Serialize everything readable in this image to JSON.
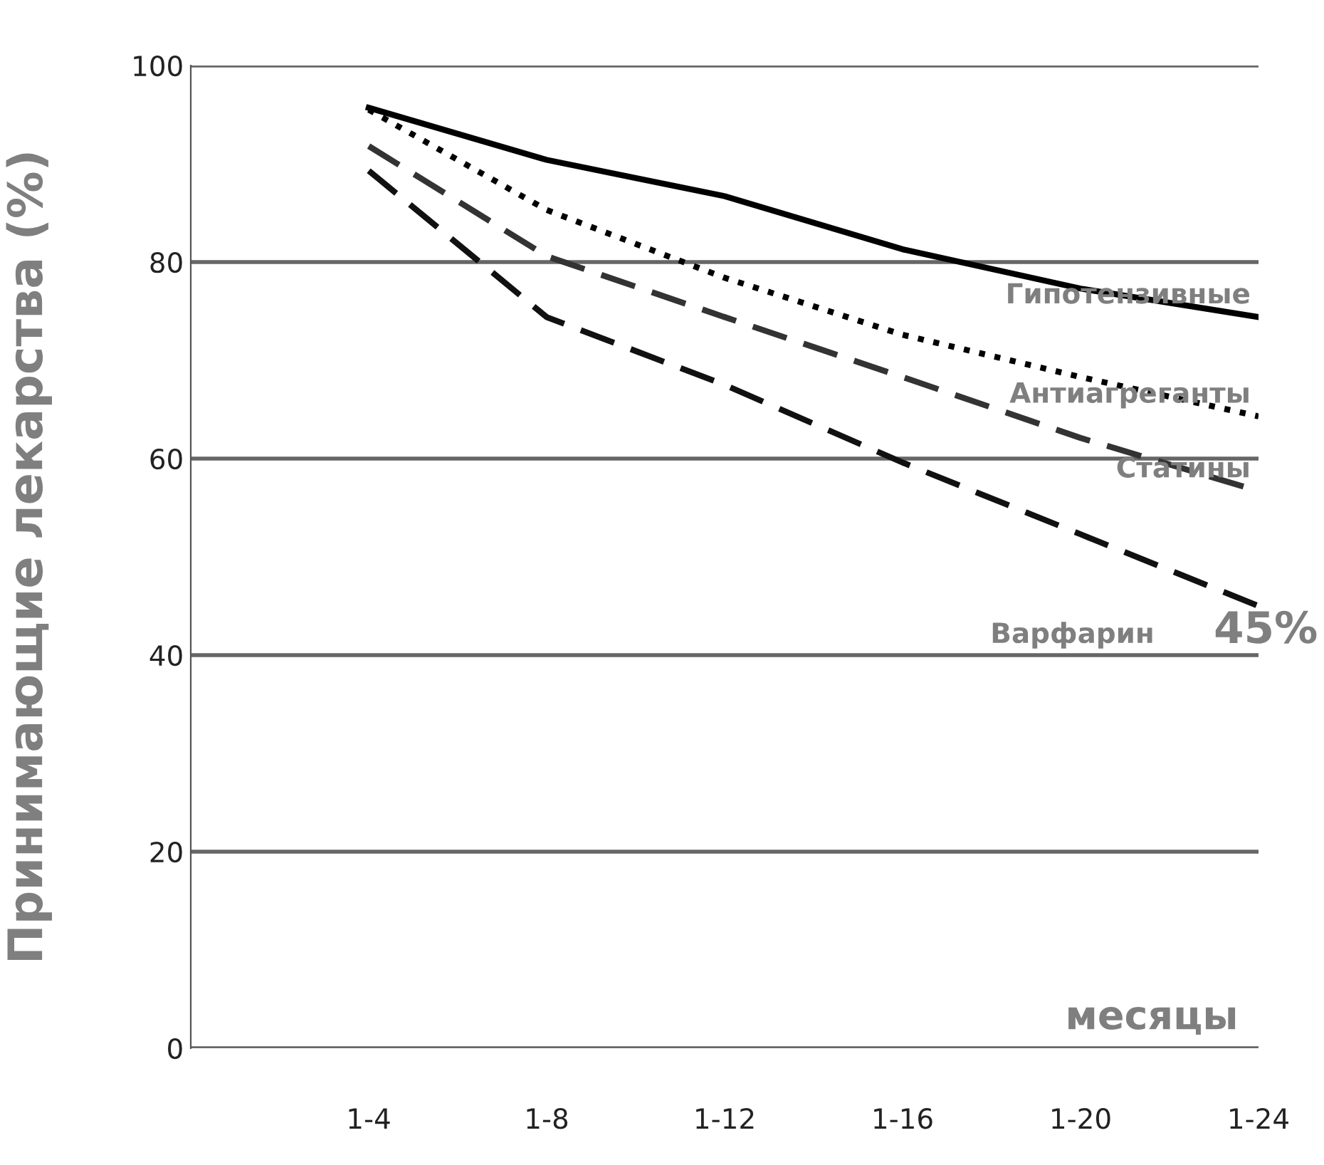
{
  "chart_data": {
    "type": "line",
    "ylabel": "Принимающие лекарства (%)",
    "xlabel": "месяцы",
    "categories": [
      "1-4",
      "1-8",
      "1-12",
      "1-16",
      "1-20",
      "1-24"
    ],
    "series": [
      {
        "name": "Гипотензивные",
        "color": "#000000",
        "line_style": "solid",
        "values": [
          95.7,
          90.4,
          86.7,
          81.3,
          77.3,
          74.4
        ]
      },
      {
        "name": "Антиагреганты",
        "color": "#000000",
        "line_style": "dotted",
        "values": [
          95.5,
          85.3,
          78.4,
          72.6,
          68.3,
          64.3
        ]
      },
      {
        "name": "Статины",
        "color": "#333333",
        "line_style": "dashed",
        "values": [
          91.8,
          80.6,
          74.4,
          68.3,
          62.1,
          56.7
        ]
      },
      {
        "name": "Варфарин",
        "color": "#111111",
        "line_style": "dashed",
        "values": [
          89.3,
          74.4,
          67.5,
          59.6,
          52.3,
          45
        ]
      }
    ],
    "annotations": [
      {
        "text": "45%",
        "x": "1-24",
        "y": 45
      }
    ],
    "ylim": [
      0,
      100
    ],
    "yticks": [
      0,
      20,
      40,
      60,
      80,
      100
    ],
    "grid": "y",
    "marker": "none",
    "legend": false
  }
}
